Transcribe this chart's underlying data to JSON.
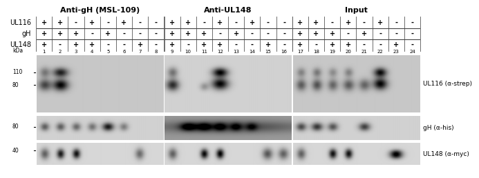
{
  "title_groups": [
    "Anti-gH (MSL-109)",
    "Anti-UL148",
    "Input"
  ],
  "row_labels": [
    "UL116",
    "gH",
    "UL148"
  ],
  "col_signs": {
    "UL116": [
      "+",
      "+",
      "-",
      "+",
      "-",
      "+",
      "-",
      "-",
      "+",
      "+",
      "-",
      "+",
      "-",
      "+",
      "-",
      "-",
      "+",
      "+",
      "-",
      "+",
      "-",
      "+",
      "-",
      "-"
    ],
    "gH": [
      "+",
      "+",
      "+",
      "-",
      "+",
      "-",
      "-",
      "-",
      "+",
      "+",
      "+",
      "-",
      "+",
      "-",
      "-",
      "-",
      "+",
      "+",
      "+",
      "-",
      "+",
      "-",
      "-",
      "-"
    ],
    "UL148": [
      "+",
      "-",
      "+",
      "+",
      "-",
      "-",
      "+",
      "-",
      "+",
      "-",
      "+",
      "+",
      "-",
      "-",
      "+",
      "-",
      "+",
      "-",
      "+",
      "+",
      "-",
      "-",
      "+",
      "-"
    ]
  },
  "lane_numbers": [
    1,
    2,
    3,
    4,
    5,
    6,
    7,
    8,
    9,
    10,
    11,
    12,
    13,
    14,
    15,
    16,
    17,
    18,
    19,
    20,
    21,
    22,
    23,
    24
  ],
  "blot_labels": [
    "UL116 (α-strep)",
    "gH (α-his)",
    "UL148 (α-myc)"
  ],
  "bg_color": "#ffffff"
}
